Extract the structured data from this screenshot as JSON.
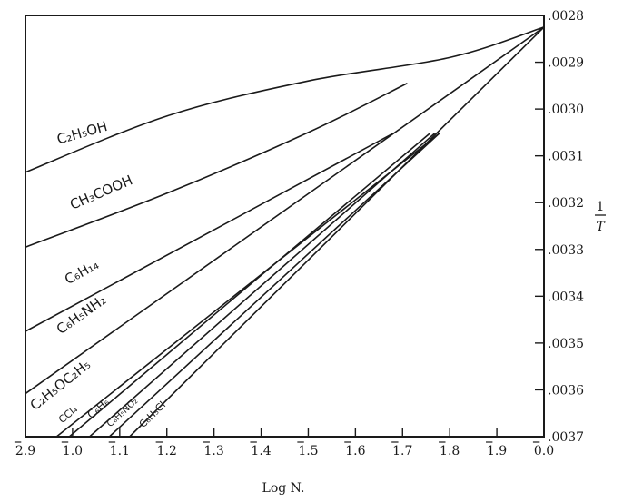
{
  "chart_data": {
    "type": "line",
    "title": "",
    "xlabel": "Log N.",
    "ylabel": {
      "numerator": "1",
      "denominator": "T"
    },
    "xlim": [
      0,
      1.1
    ],
    "ylim": [
      0.0037,
      0.0028
    ],
    "x_ticks": [
      {
        "value": 0.0,
        "bar_part": "2",
        "rest": ".9"
      },
      {
        "value": 0.1,
        "bar_part": "1",
        "rest": ".0"
      },
      {
        "value": 0.2,
        "bar_part": "1",
        "rest": ".1"
      },
      {
        "value": 0.3,
        "bar_part": "1",
        "rest": ".2"
      },
      {
        "value": 0.4,
        "bar_part": "1",
        "rest": ".3"
      },
      {
        "value": 0.5,
        "bar_part": "1",
        "rest": ".4"
      },
      {
        "value": 0.6,
        "bar_part": "1",
        "rest": ".5"
      },
      {
        "value": 0.7,
        "bar_part": "1",
        "rest": ".6"
      },
      {
        "value": 0.8,
        "bar_part": "1",
        "rest": ".7"
      },
      {
        "value": 0.9,
        "bar_part": "1",
        "rest": ".8"
      },
      {
        "value": 1.0,
        "bar_part": "1",
        "rest": ".9"
      },
      {
        "value": 1.1,
        "bar_part": "0",
        "rest": ".0"
      }
    ],
    "y_ticks": [
      {
        "value": 0.0028,
        "label": ".0028"
      },
      {
        "value": 0.0029,
        "label": ".0029"
      },
      {
        "value": 0.003,
        "label": ".0030"
      },
      {
        "value": 0.0031,
        "label": ".0031"
      },
      {
        "value": 0.0032,
        "label": ".0032"
      },
      {
        "value": 0.0033,
        "label": ".0033"
      },
      {
        "value": 0.0034,
        "label": ".0034"
      },
      {
        "value": 0.0035,
        "label": ".0035"
      },
      {
        "value": 0.0036,
        "label": ".0036"
      },
      {
        "value": 0.0037,
        "label": ".0037"
      }
    ],
    "grid": false,
    "series": [
      {
        "name": "C₂H₅OH",
        "x": [
          0.0,
          0.3,
          0.6,
          0.9,
          1.1
        ],
        "y": [
          0.003135,
          0.003015,
          0.00294,
          0.00289,
          0.002825
        ]
      },
      {
        "name": "CH₃COOH",
        "x": [
          0.0,
          0.3,
          0.6,
          0.81
        ],
        "y": [
          0.003295,
          0.00318,
          0.00305,
          0.002945
        ]
      },
      {
        "name": "C₆H₁₄",
        "x": [
          0.0,
          0.78
        ],
        "y": [
          0.003475,
          0.003052
        ]
      },
      {
        "name": "C₆H₅NH₂",
        "x": [
          0.0,
          1.1
        ],
        "y": [
          0.003608,
          0.002825
        ]
      },
      {
        "name": "C₂H₅OC₂H₅",
        "x": [
          0.066,
          0.878
        ],
        "y": [
          0.0037,
          0.003052
        ]
      },
      {
        "name": "CCl₄",
        "x": [
          0.093,
          0.858
        ],
        "y": [
          0.0037,
          0.003052
        ]
      },
      {
        "name": "C₆H₆",
        "x": [
          0.136,
          0.868
        ],
        "y": [
          0.0037,
          0.003052
        ]
      },
      {
        "name": "C₆H₅NO₂",
        "x": [
          0.178,
          0.878
        ],
        "y": [
          0.0037,
          0.003052
        ]
      },
      {
        "name": "C₆H₅Cl",
        "x": [
          0.221,
          1.1
        ],
        "y": [
          0.0037,
          0.002825
        ]
      }
    ],
    "series_labels": [
      {
        "series": "C₂H₅OH",
        "x": 0.07,
        "y": 0.003075
      },
      {
        "series": "CH₃COOH",
        "x": 0.1,
        "y": 0.003215
      },
      {
        "series": "C₆H₁₄",
        "x": 0.09,
        "y": 0.003375
      },
      {
        "series": "C₆H₅NH₂",
        "x": 0.075,
        "y": 0.003482
      },
      {
        "series": "C₂H₅OC₂H₅",
        "x": 0.02,
        "y": 0.003645
      },
      {
        "series": "CCl₄",
        "x": 0.078,
        "y": 0.003672
      },
      {
        "series": "C₆H₆",
        "x": 0.14,
        "y": 0.003663
      },
      {
        "series": "C₆H₅NO₂",
        "x": 0.18,
        "y": 0.00368
      },
      {
        "series": "C₆H₅Cl",
        "x": 0.25,
        "y": 0.003682
      }
    ]
  }
}
